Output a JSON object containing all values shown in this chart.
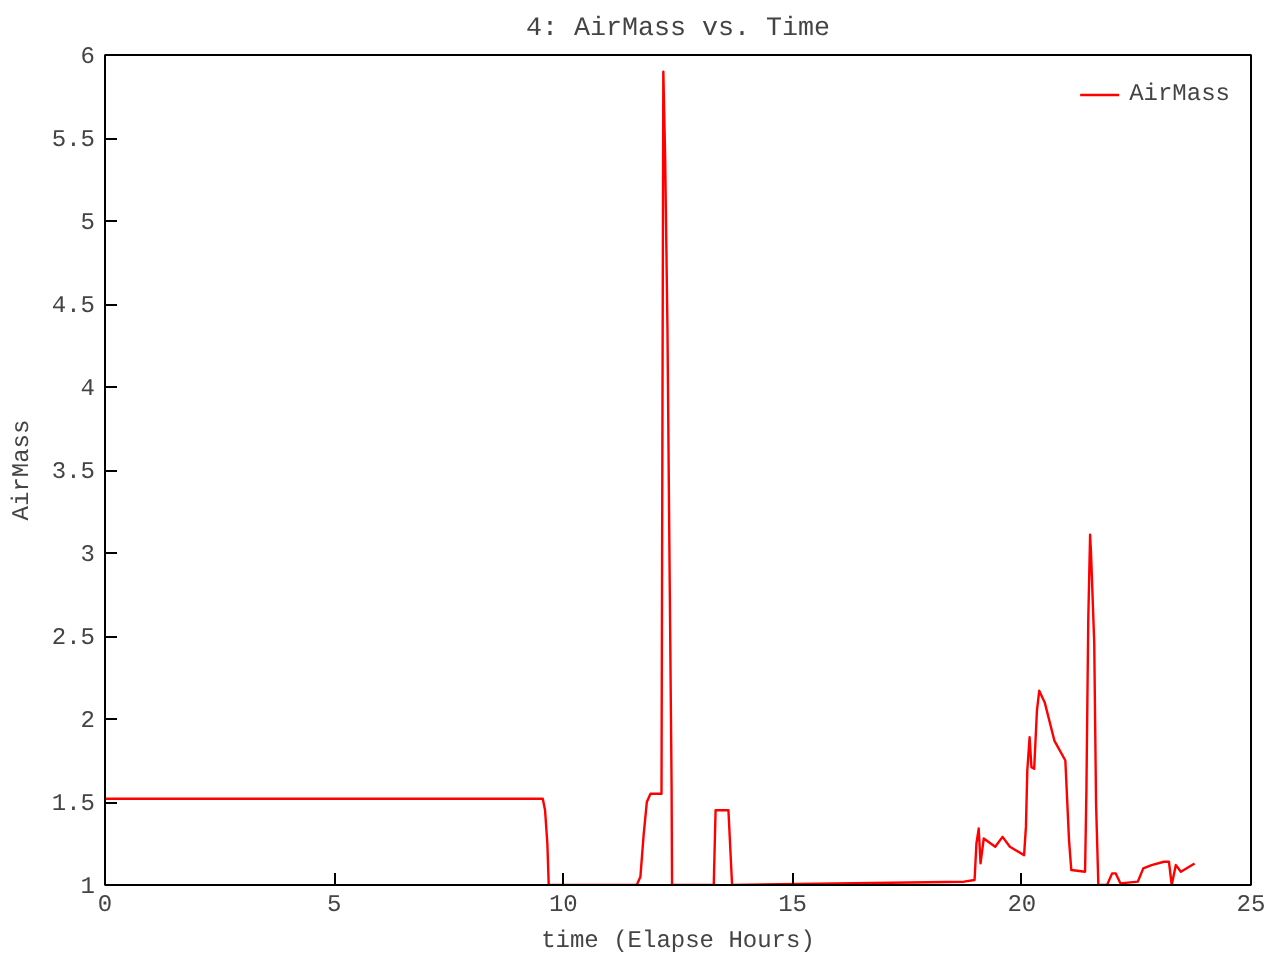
{
  "chart_data": {
    "type": "line",
    "title": "4: AirMass vs. Time",
    "xlabel": "time (Elapse Hours)",
    "ylabel": "AirMass",
    "xlim": [
      0,
      25
    ],
    "ylim": [
      1,
      6
    ],
    "xticks": [
      0,
      5,
      10,
      15,
      20,
      25
    ],
    "yticks": [
      1,
      1.5,
      2,
      2.5,
      3,
      3.5,
      4,
      4.5,
      5,
      5.5,
      6
    ],
    "grid": false,
    "legend": "top right",
    "series": [
      {
        "name": "AirMass",
        "color": "#ff0000",
        "x": [
          0,
          9.55,
          9.6,
          9.65,
          9.68,
          11.6,
          11.68,
          11.75,
          11.82,
          11.9,
          12.14,
          12.16,
          12.18,
          12.22,
          12.27,
          12.31,
          12.36,
          12.37,
          13.28,
          13.32,
          13.45,
          13.6,
          13.68,
          18.74,
          18.97,
          19.01,
          19.06,
          19.1,
          19.17,
          19.42,
          19.58,
          19.74,
          20.05,
          20.09,
          20.12,
          20.17,
          20.21,
          20.27,
          20.33,
          20.38,
          20.5,
          20.71,
          20.95,
          21.03,
          21.08,
          21.38,
          21.41,
          21.45,
          21.49,
          21.51,
          21.58,
          21.62,
          21.67,
          21.86,
          21.97,
          22.05,
          22.15,
          22.53,
          22.65,
          22.83,
          23.1,
          23.21,
          23.27,
          23.36,
          23.47,
          23.77
        ],
        "values": [
          1.52,
          1.52,
          1.45,
          1.25,
          1.0,
          1.0,
          1.05,
          1.3,
          1.5,
          1.55,
          1.55,
          3.75,
          5.9,
          5.38,
          4.35,
          3.1,
          1.6,
          1.0,
          1.0,
          1.45,
          1.45,
          1.45,
          1.0,
          1.02,
          1.03,
          1.25,
          1.34,
          1.13,
          1.28,
          1.23,
          1.29,
          1.23,
          1.18,
          1.35,
          1.69,
          1.89,
          1.71,
          1.7,
          2.05,
          2.17,
          2.1,
          1.87,
          1.75,
          1.27,
          1.09,
          1.08,
          1.58,
          2.6,
          3.11,
          3.0,
          2.46,
          1.49,
          1.0,
          1.0,
          1.07,
          1.07,
          1.01,
          1.02,
          1.1,
          1.12,
          1.14,
          1.14,
          1.0,
          1.12,
          1.08,
          1.13
        ]
      }
    ]
  }
}
